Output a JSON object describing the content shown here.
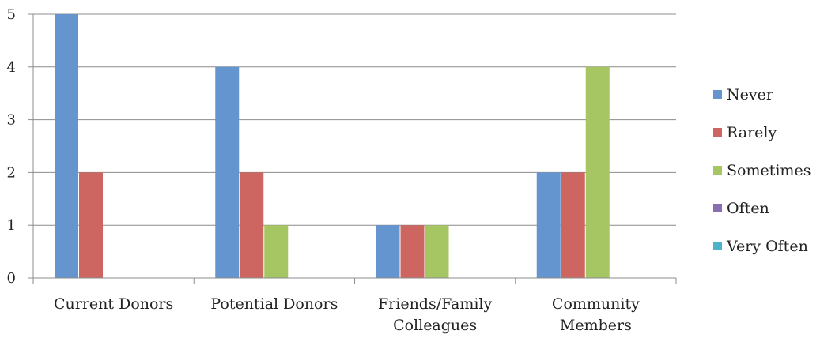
{
  "chart_data": {
    "type": "bar",
    "categories": [
      [
        "Current Donors"
      ],
      [
        "Potential Donors"
      ],
      [
        "Friends/Family",
        "Colleagues"
      ],
      [
        "Community",
        "Members"
      ]
    ],
    "series": [
      {
        "name": "Never",
        "color": "#6495cf",
        "values": [
          5,
          4,
          1,
          2
        ]
      },
      {
        "name": "Rarely",
        "color": "#cd6661",
        "values": [
          2,
          2,
          1,
          2
        ]
      },
      {
        "name": "Sometimes",
        "color": "#a6c563",
        "values": [
          0,
          1,
          1,
          4
        ]
      },
      {
        "name": "Often",
        "color": "#8a6fb0",
        "values": [
          0,
          0,
          0,
          0
        ]
      },
      {
        "name": "Very Often",
        "color": "#4bb3cc",
        "values": [
          0,
          0,
          0,
          0
        ]
      }
    ],
    "ylim": [
      0,
      5
    ],
    "yticks": [
      "0",
      "1",
      "2",
      "3",
      "4",
      "5"
    ],
    "grid": true,
    "legend": "right",
    "title": "",
    "xlabel": "",
    "ylabel": ""
  }
}
